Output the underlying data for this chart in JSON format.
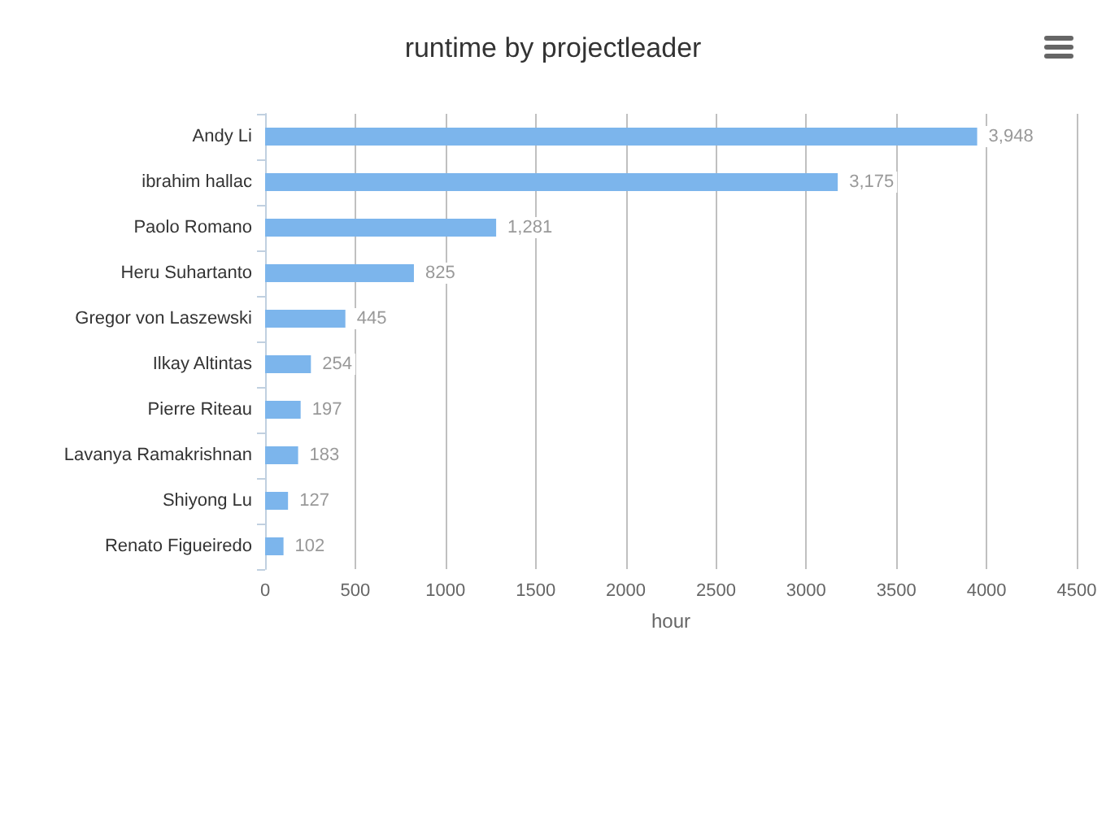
{
  "chart_data": {
    "type": "bar",
    "orientation": "horizontal",
    "title": "runtime by projectleader",
    "xlabel": "hour",
    "categories": [
      "Andy Li",
      "ibrahim hallac",
      "Paolo Romano",
      "Heru Suhartanto",
      "Gregor von Laszewski",
      "Ilkay Altintas",
      "Pierre Riteau",
      "Lavanya Ramakrishnan",
      "Shiyong Lu",
      "Renato Figueiredo"
    ],
    "values": [
      3948,
      3175,
      1281,
      825,
      445,
      254,
      197,
      183,
      127,
      102
    ],
    "color": "#7cb5ec",
    "value_labels": [
      "3,948",
      "3,175",
      "1,281",
      "825",
      "445",
      "254",
      "197",
      "183",
      "127",
      "102"
    ],
    "xlim": [
      0,
      4500
    ],
    "xticks": [
      0,
      500,
      1000,
      1500,
      2000,
      2500,
      3000,
      3500,
      4000,
      4500
    ],
    "grid": "x"
  }
}
